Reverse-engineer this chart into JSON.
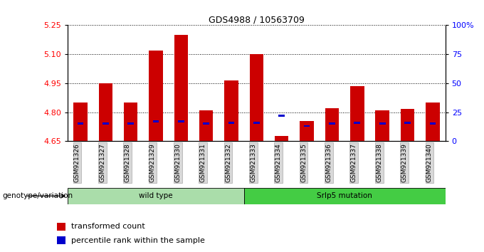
{
  "title": "GDS4988 / 10563709",
  "samples": [
    "GSM921326",
    "GSM921327",
    "GSM921328",
    "GSM921329",
    "GSM921330",
    "GSM921331",
    "GSM921332",
    "GSM921333",
    "GSM921334",
    "GSM921335",
    "GSM921336",
    "GSM921337",
    "GSM921338",
    "GSM921339",
    "GSM921340"
  ],
  "transformed_count": [
    4.85,
    4.95,
    4.85,
    5.12,
    5.2,
    4.81,
    4.965,
    5.1,
    4.675,
    4.755,
    4.82,
    4.935,
    4.81,
    4.815,
    4.85
  ],
  "percentile_rank": [
    15,
    15,
    15,
    17,
    17,
    15,
    16,
    16,
    22,
    13,
    15,
    16,
    15,
    16,
    15
  ],
  "ymin": 4.65,
  "ymax": 5.25,
  "yticks": [
    4.65,
    4.8,
    4.95,
    5.1,
    5.25
  ],
  "right_yticks": [
    0,
    25,
    50,
    75,
    100
  ],
  "right_ylabels": [
    "0",
    "25",
    "50",
    "75",
    "100%"
  ],
  "genotype_groups": [
    {
      "label": "wild type",
      "start": 0,
      "end": 7,
      "color": "#aaddaa"
    },
    {
      "label": "Srlp5 mutation",
      "start": 7,
      "end": 15,
      "color": "#44cc44"
    }
  ],
  "bar_color": "#CC0000",
  "percentile_color": "#0000CC",
  "bar_width": 0.55,
  "legend_items": [
    {
      "label": "transformed count",
      "color": "#CC0000"
    },
    {
      "label": "percentile rank within the sample",
      "color": "#0000CC"
    }
  ],
  "xlabel_genotype": "genotype/variation"
}
